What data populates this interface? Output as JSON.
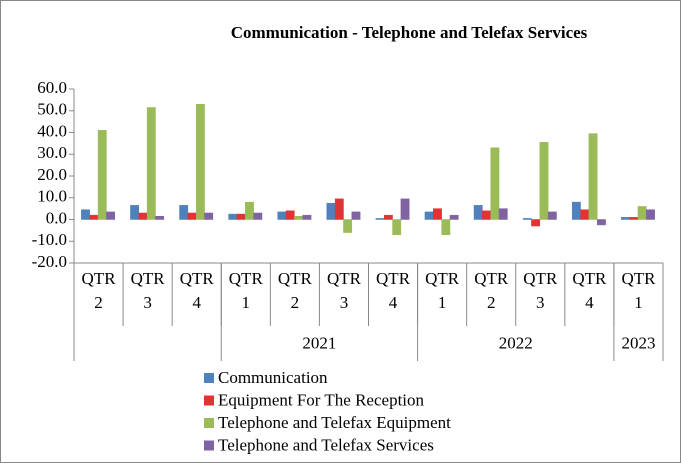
{
  "chart_data": {
    "type": "bar",
    "title": "Communication - Telephone and Telefax Services",
    "categories": [
      "QTR 2",
      "QTR 3",
      "QTR 4",
      "QTR 1",
      "QTR 2",
      "QTR 3",
      "QTR 4",
      "QTR 1",
      "QTR 2",
      "QTR 3",
      "QTR 4",
      "QTR 1"
    ],
    "category_groups": [
      {
        "label": null,
        "count": 3
      },
      {
        "label": "2021",
        "count": 4
      },
      {
        "label": "2022",
        "count": 4
      },
      {
        "label": "2023",
        "count": 1
      }
    ],
    "series": [
      {
        "name": "Communication",
        "color": "#4f81bd",
        "values": [
          4.5,
          6.5,
          6.5,
          2.5,
          3.5,
          7.5,
          0.5,
          3.5,
          6.5,
          0.5,
          8,
          1
        ]
      },
      {
        "name": "Equipment For The Reception",
        "color": "#e03333",
        "values": [
          2,
          3,
          3,
          2.5,
          4,
          9.5,
          2,
          5,
          4,
          -3,
          4.5,
          1
        ]
      },
      {
        "name": "Telephone and Telefax Equipment",
        "color": "#9bbb59",
        "values": [
          41,
          51.5,
          53,
          8,
          1.5,
          -6,
          -7,
          -7,
          33,
          35.5,
          39.5,
          6
        ]
      },
      {
        "name": "Telephone and Telefax  Services",
        "color": "#8064a2",
        "values": [
          3.5,
          1.5,
          3,
          3,
          2,
          3.5,
          9.5,
          2,
          5,
          3.5,
          -2.5,
          4.5
        ]
      }
    ],
    "ylim": [
      -20,
      60
    ],
    "yticks": [
      {
        "value": -20,
        "label": "-20.0"
      },
      {
        "value": -10,
        "label": "-10.0"
      },
      {
        "value": 0,
        "label": "0.0"
      },
      {
        "value": 10,
        "label": "10.0"
      },
      {
        "value": 20,
        "label": "20.0"
      },
      {
        "value": 30,
        "label": "30.0"
      },
      {
        "value": 40,
        "label": "40.0"
      },
      {
        "value": 50,
        "label": "50.0"
      },
      {
        "value": 60,
        "label": "60.0"
      }
    ],
    "grid": false
  }
}
